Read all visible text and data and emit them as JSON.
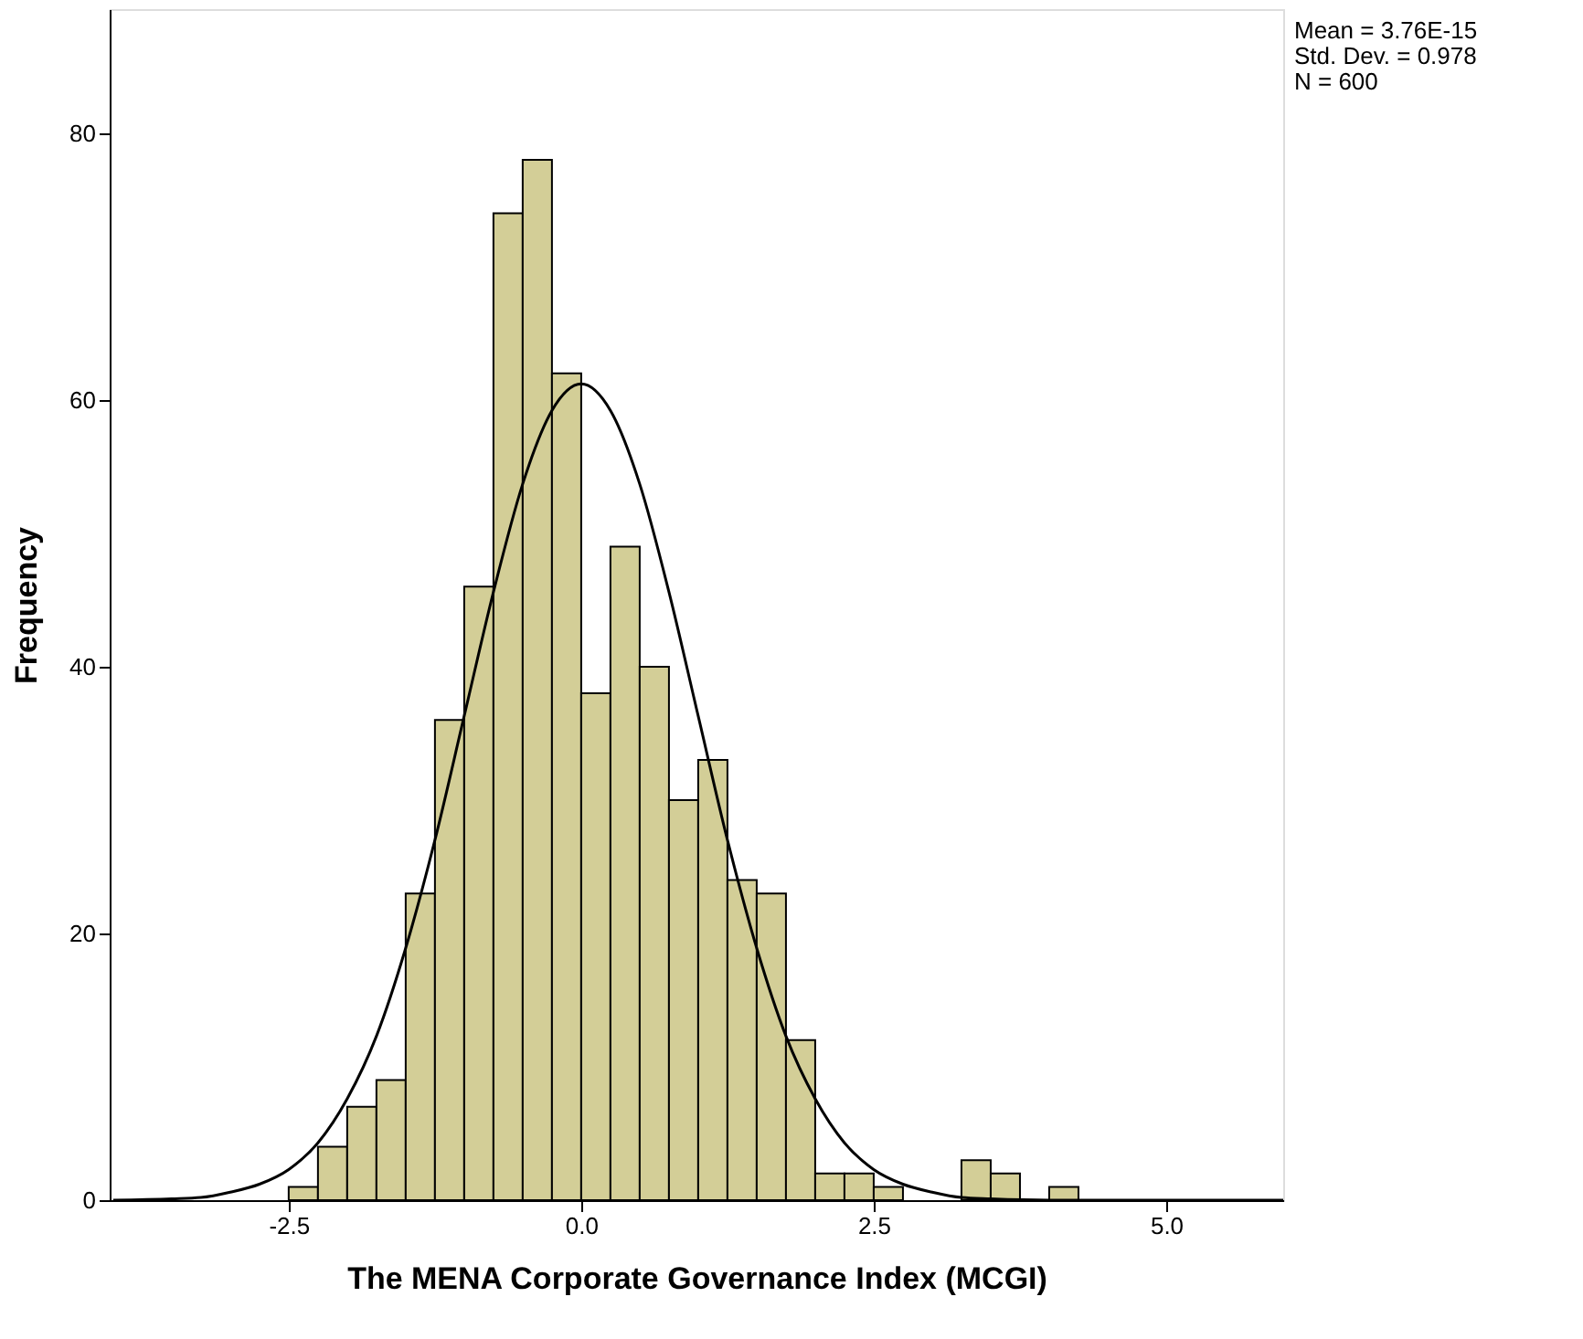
{
  "chart_data": {
    "type": "histogram",
    "xlabel": "The MENA Corporate Governance Index (MCGI)",
    "ylabel": "Frequency",
    "bins": [
      -2.5,
      -2.25,
      -2.0,
      -1.75,
      -1.5,
      -1.25,
      -1.0,
      -0.75,
      -0.5,
      -0.25,
      0.0,
      0.25,
      0.5,
      0.75,
      1.0,
      1.25,
      1.5,
      1.75,
      2.0,
      2.25,
      2.5,
      2.75,
      3.0,
      3.25,
      3.5,
      3.75,
      4.0,
      4.25
    ],
    "series": [
      {
        "color": "#d3ce97",
        "values": [
          1,
          4,
          7,
          9,
          23,
          36,
          46,
          74,
          78,
          62,
          38,
          49,
          40,
          30,
          33,
          24,
          23,
          12,
          2,
          2,
          1,
          0,
          0,
          3,
          2,
          0,
          1
        ]
      },
      {
        "type": "line",
        "color": "#000000",
        "x": [
          -4.0,
          -3.5,
          -3.25,
          -3.0,
          -2.75,
          -2.5,
          -2.25,
          -2.0,
          -1.75,
          -1.5,
          -1.25,
          -1.0,
          -0.75,
          -0.5,
          -0.25,
          0.0,
          0.25,
          0.5,
          0.75,
          1.0,
          1.25,
          1.5,
          1.75,
          2.0,
          2.25,
          2.5,
          2.75,
          3.0,
          3.25,
          3.5,
          4.0,
          4.5,
          5.0,
          6.0
        ],
        "values": [
          0.0,
          0.1,
          0.2,
          0.6,
          1.2,
          2.3,
          4.3,
          7.6,
          12.3,
          18.9,
          27.0,
          36.3,
          45.6,
          53.7,
          59.2,
          61.2,
          59.2,
          53.7,
          45.6,
          36.3,
          27.0,
          18.9,
          12.3,
          7.6,
          4.3,
          2.3,
          1.2,
          0.6,
          0.2,
          0.1,
          0.0,
          0.0,
          0.0,
          0.0
        ]
      }
    ],
    "xlim": [
      -4.03,
      6.0
    ],
    "ylim": [
      0,
      89.3
    ],
    "xticks": [
      {
        "value": -2.5,
        "label": "-2.5"
      },
      {
        "value": 0,
        "label": "0.0"
      },
      {
        "value": 2.5,
        "label": "2.5"
      },
      {
        "value": 5,
        "label": "5.0"
      }
    ],
    "yticks": [
      0,
      20,
      40,
      60,
      80
    ],
    "annotations": [
      "Mean = 3.76E-15",
      "Std. Dev. = 0.978",
      "N = 600"
    ]
  }
}
